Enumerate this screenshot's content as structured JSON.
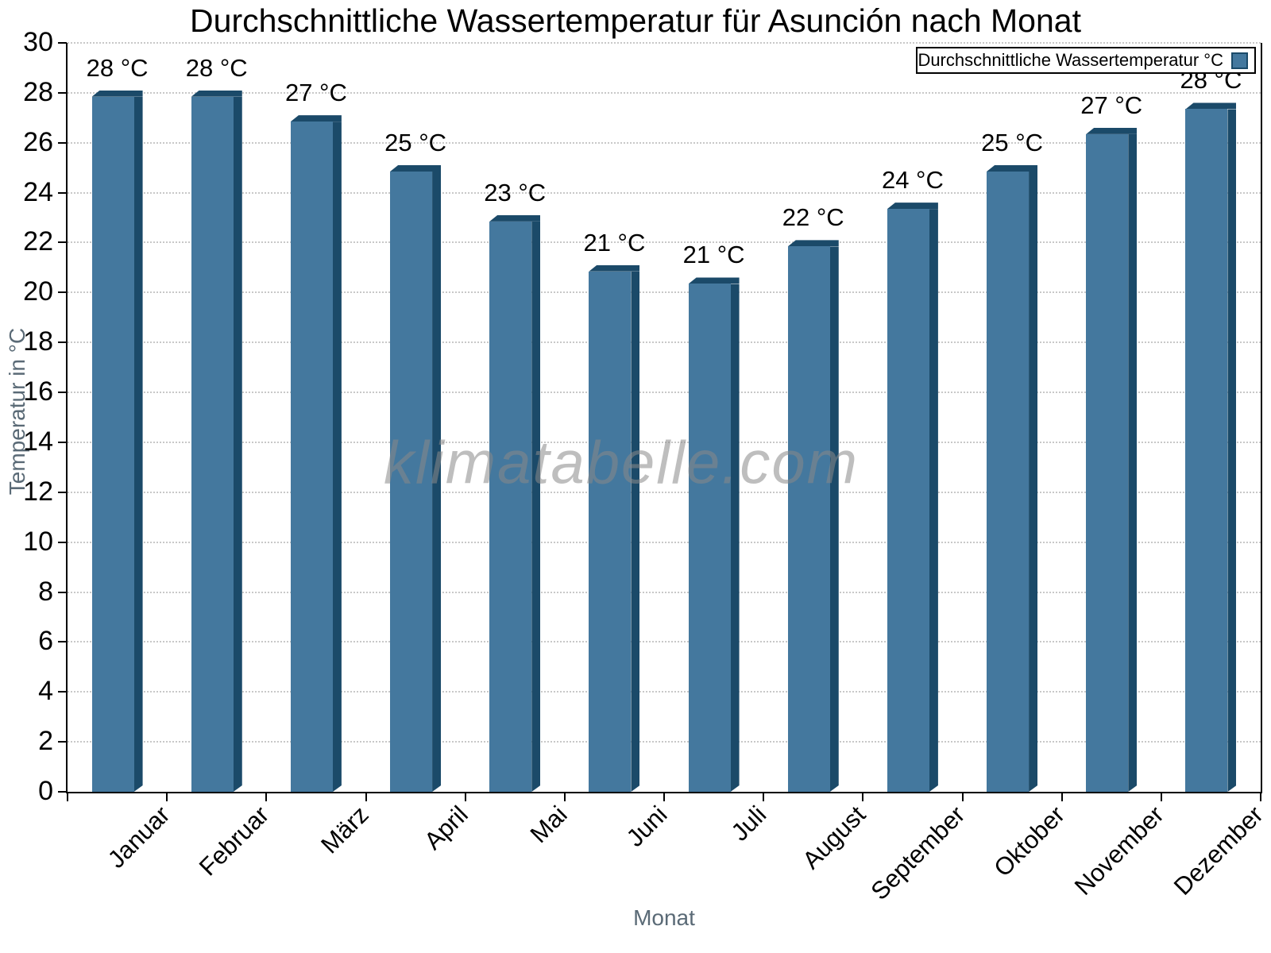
{
  "watermark": "klimatabelle.com",
  "chart_data": {
    "type": "bar",
    "title": "Durchschnittliche Wassertemperatur für Asunción nach Monat",
    "xlabel": "Monat",
    "ylabel": "Temperatur in °C",
    "legend": [
      "Durchschnittliche Wassertemperatur °C"
    ],
    "legend_position": "top-right",
    "categories": [
      "Januar",
      "Februar",
      "März",
      "April",
      "Mai",
      "Juni",
      "Juli",
      "August",
      "September",
      "Oktober",
      "November",
      "Dezember"
    ],
    "values": [
      28.1,
      28.1,
      27.1,
      25.1,
      23.1,
      21.1,
      20.6,
      22.1,
      23.6,
      25.1,
      26.6,
      27.6
    ],
    "value_labels": [
      "28 °C",
      "28 °C",
      "27 °C",
      "25 °C",
      "23 °C",
      "21 °C",
      "21 °C",
      "22 °C",
      "24 °C",
      "25 °C",
      "27 °C",
      "28 °C"
    ],
    "ylim": [
      0,
      30
    ],
    "ytick_step": 2,
    "grid": "horizontal-dotted",
    "x_tick_rotation": -45,
    "colors": {
      "bar": "#44789e",
      "bar_edge": "#1b4a69",
      "axis": "#000000",
      "axis_title": "#5a6a76",
      "grid": "#c8c8c8",
      "watermark": "#8a8a8a"
    }
  }
}
